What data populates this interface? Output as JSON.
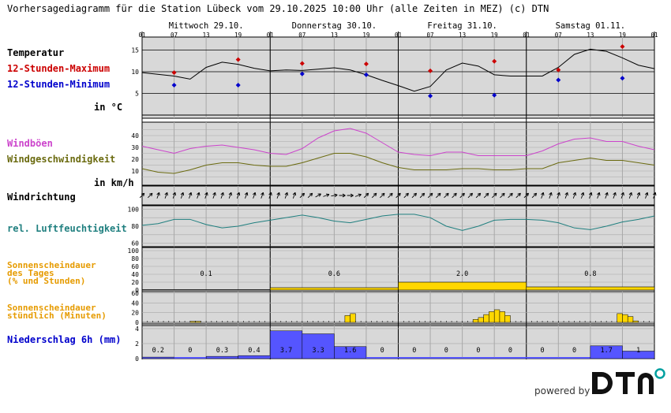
{
  "header": "Vorhersagediagramm für die Station Lübeck vom 29.10.2025 10:00 Uhr (alle Zeiten in MEZ)   (c) DTN",
  "days": [
    "Mittwoch 29.10.",
    "Donnerstag 30.10.",
    "Freitag 31.10.",
    "Samstag 01.11."
  ],
  "hour_ticks": [
    "01",
    "07",
    "13",
    "19",
    "01",
    "07",
    "13",
    "19",
    "01",
    "07",
    "13",
    "19",
    "01",
    "07",
    "13",
    "19",
    "01"
  ],
  "labels": {
    "temperature": "Temperatur",
    "max12": "12-Stunden-Maximum",
    "min12": "12-Stunden-Minimum",
    "temp_unit": "in °C",
    "gusts": "Windböen",
    "wind_speed": "Windgeschwindigkeit",
    "wind_unit": "in km/h",
    "wind_dir": "Windrichtung",
    "humidity": "rel. Luftfeuchtigkeit",
    "sun_day_1": "Sonnenscheindauer",
    "sun_day_2": "des Tages",
    "sun_day_3": "(% und Stunden)",
    "sun_hour_1": "Sonnenscheindauer",
    "sun_hour_2": "stündlich (Minuten)",
    "precip": "Niederschlag 6h (mm)"
  },
  "colors": {
    "temperature": "#000000",
    "max": "#cc0000",
    "min": "#0000cc",
    "gusts": "#cc44cc",
    "wind": "#6b6b10",
    "humidity": "#1f7f7f",
    "sun": "#ffd700",
    "sun_label": "#e69b00",
    "precip": "#5555ff",
    "precip_label": "#0000cc",
    "panel": "#d8d8d8"
  },
  "powered_by": "powered by",
  "logo": "DTN",
  "chart_data": [
    {
      "type": "line",
      "name": "temperature",
      "x_hours": [
        0,
        6,
        9,
        12,
        15,
        18,
        21,
        24,
        27,
        30,
        33,
        36,
        39,
        42,
        45,
        48,
        51,
        54,
        57,
        60,
        63,
        66,
        69,
        72,
        75,
        78,
        81,
        84,
        87,
        90,
        93,
        96
      ],
      "values": [
        9.8,
        9.0,
        8.3,
        11.0,
        12.2,
        11.7,
        10.8,
        10.2,
        10.4,
        10.3,
        10.6,
        10.9,
        10.4,
        9.3,
        8.0,
        6.8,
        5.5,
        6.6,
        10.4,
        12.0,
        11.3,
        9.3,
        9.0,
        9.0,
        9.0,
        11.0,
        14.0,
        15.2,
        14.7,
        13.2,
        11.5,
        10.7
      ],
      "max_points": [
        [
          6,
          9.8
        ],
        [
          18,
          12.8
        ],
        [
          30,
          11.9
        ],
        [
          42,
          11.8
        ],
        [
          54,
          10.2
        ],
        [
          66,
          12.4
        ],
        [
          78,
          10.4
        ],
        [
          90,
          15.8
        ]
      ],
      "min_points": [
        [
          6,
          6.9
        ],
        [
          18,
          6.9
        ],
        [
          30,
          9.5
        ],
        [
          42,
          9.3
        ],
        [
          54,
          4.4
        ],
        [
          66,
          4.6
        ],
        [
          78,
          8.1
        ],
        [
          90,
          8.5
        ]
      ],
      "ylim": [
        0,
        18
      ],
      "yticks": [
        5,
        10,
        15
      ]
    },
    {
      "type": "line",
      "name": "wind",
      "x_hours": [
        0,
        3,
        6,
        9,
        12,
        15,
        18,
        21,
        24,
        27,
        30,
        33,
        36,
        39,
        42,
        45,
        48,
        51,
        54,
        57,
        60,
        63,
        66,
        69,
        72,
        75,
        78,
        81,
        84,
        87,
        90,
        93,
        96
      ],
      "gusts": [
        31,
        28,
        25,
        29,
        31,
        32,
        30,
        28,
        25,
        24,
        29,
        38,
        44,
        46,
        42,
        34,
        26,
        24,
        23,
        26,
        26,
        23,
        23,
        23,
        23,
        27,
        33,
        37,
        38,
        35,
        35,
        31,
        28
      ],
      "speed": [
        12,
        9,
        8,
        11,
        15,
        17,
        17,
        15,
        14,
        14,
        17,
        21,
        25,
        25,
        22,
        17,
        13,
        11,
        11,
        11,
        12,
        12,
        11,
        11,
        12,
        12,
        17,
        19,
        21,
        19,
        19,
        17,
        15
      ],
      "ylim": [
        0,
        48
      ],
      "yticks": [
        10,
        20,
        30,
        40
      ]
    },
    {
      "type": "line",
      "name": "humidity",
      "x_hours": [
        0,
        3,
        6,
        9,
        12,
        15,
        18,
        21,
        24,
        27,
        30,
        33,
        36,
        39,
        42,
        45,
        48,
        51,
        54,
        57,
        60,
        63,
        66,
        69,
        72,
        75,
        78,
        81,
        84,
        87,
        90,
        93,
        96
      ],
      "values": [
        81,
        83,
        88,
        88,
        82,
        78,
        80,
        84,
        87,
        90,
        93,
        90,
        86,
        84,
        88,
        92,
        94,
        94,
        90,
        80,
        75,
        80,
        87,
        88,
        88,
        87,
        84,
        78,
        76,
        80,
        85,
        88,
        92
      ],
      "ylim": [
        56,
        104
      ],
      "yticks": [
        60,
        80,
        100
      ]
    },
    {
      "type": "bar",
      "name": "sunshine_daily",
      "categories": [
        "Mittwoch 29.10.",
        "Donnerstag 30.10.",
        "Freitag 31.10.",
        "Samstag 01.11."
      ],
      "hours": [
        "0.1",
        "0.6",
        "2.0",
        "0.8"
      ],
      "percent": [
        1,
        6,
        20,
        8
      ],
      "ylim": [
        0,
        100
      ],
      "yticks": [
        0,
        20,
        40,
        60,
        80,
        100
      ]
    },
    {
      "type": "bar",
      "name": "sunshine_hourly",
      "bars": [
        [
          9,
          2
        ],
        [
          10,
          2
        ],
        [
          38,
          14
        ],
        [
          39,
          18
        ],
        [
          62,
          6
        ],
        [
          63,
          10
        ],
        [
          64,
          16
        ],
        [
          65,
          22
        ],
        [
          66,
          26
        ],
        [
          67,
          22
        ],
        [
          68,
          14
        ],
        [
          89,
          18
        ],
        [
          90,
          16
        ],
        [
          91,
          12
        ],
        [
          92,
          3
        ]
      ],
      "ylim": [
        0,
        60
      ],
      "yticks": [
        0,
        20,
        40,
        60
      ]
    },
    {
      "type": "bar",
      "name": "precipitation_6h",
      "values": [
        "0.2",
        "0",
        "0.3",
        "0.4",
        "3.7",
        "3.3",
        "1.6",
        "0",
        "0",
        "0",
        "0",
        "0",
        "0",
        "0",
        "1.7",
        "1"
      ],
      "ylim": [
        0,
        4.2
      ],
      "yticks": [
        0,
        2,
        4
      ]
    }
  ]
}
